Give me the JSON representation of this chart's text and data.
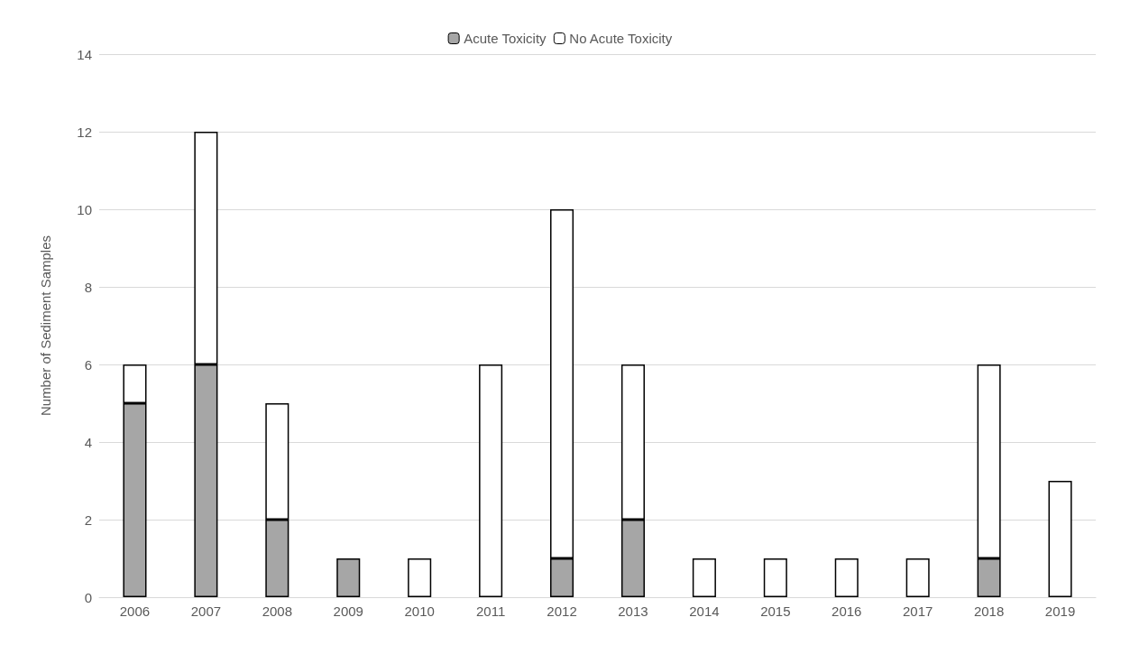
{
  "chart_data": {
    "type": "bar",
    "stacked": true,
    "ylabel": "Number of Sediment Samples",
    "categories": [
      "2006",
      "2007",
      "2008",
      "2009",
      "2010",
      "2011",
      "2012",
      "2013",
      "2014",
      "2015",
      "2016",
      "2017",
      "2018",
      "2019"
    ],
    "series": [
      {
        "name": "Acute Toxicity",
        "color": "#a6a6a6",
        "values": [
          5,
          6,
          2,
          1,
          0,
          0,
          1,
          2,
          0,
          0,
          0,
          0,
          1,
          0
        ]
      },
      {
        "name": "No Acute Toxicity",
        "color": "#ffffff",
        "values": [
          1,
          6,
          3,
          0,
          1,
          6,
          9,
          4,
          1,
          1,
          1,
          1,
          5,
          3
        ]
      }
    ],
    "ylim": [
      0,
      14
    ],
    "yticks": [
      0,
      2,
      4,
      6,
      8,
      10,
      12,
      14
    ],
    "grid": "y",
    "legend": "top"
  }
}
